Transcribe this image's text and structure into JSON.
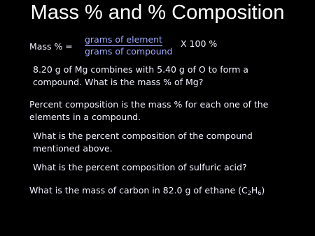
{
  "title": "Mass % and % Composition",
  "formula": {
    "lhs": "Mass % =",
    "numerator": "grams of element",
    "denominator": "grams of compound",
    "factor": "X 100 %"
  },
  "paragraphs": [
    {
      "lines": [
        "8.20 g of Mg combines with 5.40 g of O to form a",
        "compound.  What is the mass % of Mg?"
      ]
    },
    {
      "lines": [
        "Percent composition is the mass % for each one of the",
        "elements in a compound."
      ]
    },
    {
      "lines": [
        "What is the percent composition of the compound",
        "mentioned above."
      ]
    },
    {
      "lines": [
        "What is the percent composition of sulfuric acid?"
      ]
    }
  ],
  "last_question": {
    "text": "What is the mass of carbon in 82.0 g of ethane (C",
    "sub1": "2",
    "mid": "H",
    "sub2": "6",
    "end": ")"
  }
}
